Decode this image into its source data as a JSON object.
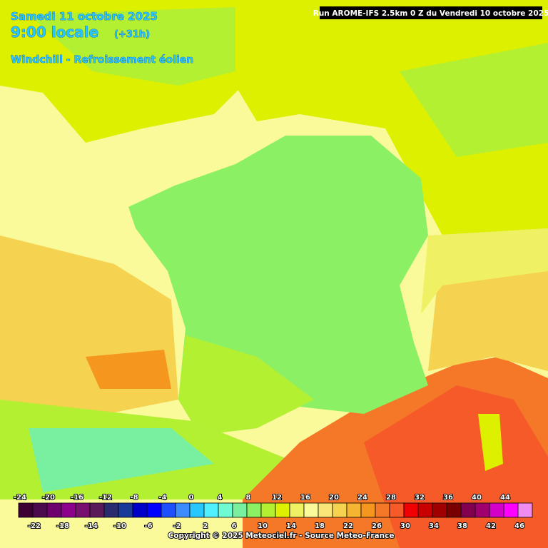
{
  "header": {
    "date": "Samedi 11 octobre 2025",
    "time": "9:00 locale",
    "lead": "(+31h)",
    "parameter": "Windchill - Refroissement éolien"
  },
  "run": "Run AROME-IFS 2.5km 0 Z du Vendredi 10 octobre 2025",
  "legend": {
    "values": [
      -24,
      -22,
      -20,
      -18,
      -16,
      -14,
      -12,
      -10,
      -8,
      -6,
      -4,
      -2,
      0,
      2,
      4,
      6,
      8,
      10,
      12,
      14,
      16,
      18,
      20,
      22,
      24,
      26,
      28,
      30,
      32,
      34,
      36,
      38,
      40,
      42,
      44,
      46
    ],
    "colors": [
      "#3c0032",
      "#4b0a4b",
      "#6e006e",
      "#8c008c",
      "#781070",
      "#5a1a5a",
      "#2a2a6e",
      "#1a3a9a",
      "#0000c8",
      "#0000ff",
      "#1e50ff",
      "#3c8cff",
      "#28c8ff",
      "#50f0ff",
      "#6efad2",
      "#78f0a0",
      "#8cf064",
      "#b4f032",
      "#dcf000",
      "#f0f064",
      "#fafa9b",
      "#fae678",
      "#f5d250",
      "#f5b432",
      "#f5961e",
      "#f57828",
      "#f55a28",
      "#f00000",
      "#c80000",
      "#a00000",
      "#780000",
      "#820050",
      "#a0006e",
      "#d200c8",
      "#ff00ff",
      "#f08cf0"
    ]
  },
  "footer": "Copyright © 2025 Meteociel.fr - Source Meteo-France"
}
